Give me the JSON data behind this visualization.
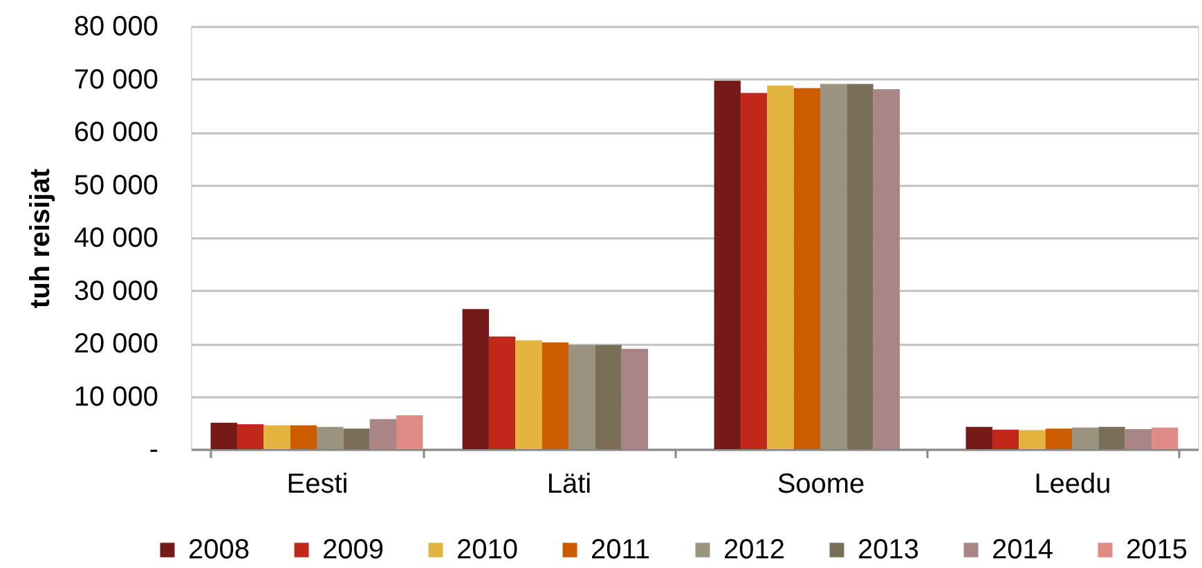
{
  "chart_data": {
    "type": "bar",
    "ylabel": "tuh reisijat",
    "categories": [
      "Eesti",
      "Läti",
      "Soome",
      "Leedu"
    ],
    "series": [
      {
        "name": "2008",
        "color": "#761919",
        "values": [
          5000,
          26500,
          69700,
          4200
        ]
      },
      {
        "name": "2009",
        "color": "#c0291a",
        "values": [
          4700,
          21300,
          67400,
          3700
        ]
      },
      {
        "name": "2010",
        "color": "#e3b43e",
        "values": [
          4500,
          20600,
          68800,
          3600
        ]
      },
      {
        "name": "2011",
        "color": "#cc5c00",
        "values": [
          4500,
          20200,
          68300,
          3900
        ]
      },
      {
        "name": "2012",
        "color": "#999380",
        "values": [
          4200,
          19700,
          69100,
          4100
        ]
      },
      {
        "name": "2013",
        "color": "#786f56",
        "values": [
          3900,
          19700,
          69100,
          4200
        ]
      },
      {
        "name": "2014",
        "color": "#aa8585",
        "values": [
          5700,
          19000,
          68100,
          3800
        ]
      },
      {
        "name": "2015",
        "color": "#e08a86",
        "values": [
          6400,
          null,
          null,
          4100
        ]
      }
    ],
    "ylim": [
      0,
      80000
    ],
    "yticks": [
      {
        "value": 0,
        "label": "-"
      },
      {
        "value": 10000,
        "label": "10 000"
      },
      {
        "value": 20000,
        "label": "20 000"
      },
      {
        "value": 30000,
        "label": "30 000"
      },
      {
        "value": 40000,
        "label": "40 000"
      },
      {
        "value": 50000,
        "label": "50 000"
      },
      {
        "value": 60000,
        "label": "60 000"
      },
      {
        "value": 70000,
        "label": "70 000"
      },
      {
        "value": 80000,
        "label": "80 000"
      }
    ],
    "grid": "y",
    "legend": "bottom"
  }
}
